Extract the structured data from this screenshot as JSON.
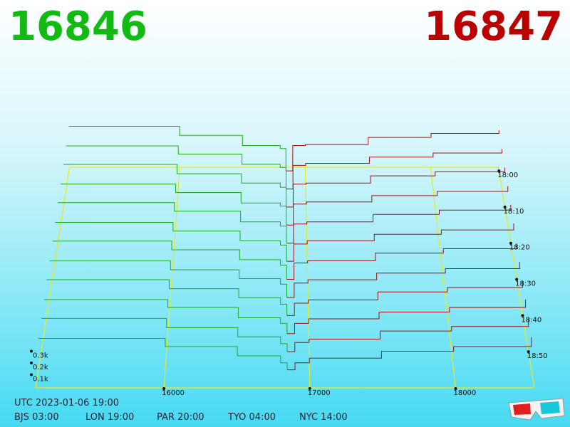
{
  "best_bid": "16846",
  "best_ask": "16847",
  "clock": {
    "utc": "UTC 2023-01-06 19:00",
    "zones": [
      "BJS 03:00",
      "LON 19:00",
      "PAR 20:00",
      "TYO 04:00",
      "NYC 14:00"
    ]
  },
  "chart_data": {
    "type": "depth3d",
    "xlim": [
      15120,
      18540
    ],
    "xticks": [
      16000,
      17000,
      18000
    ],
    "ylim": [
      0,
      0.5
    ],
    "yticks": [
      {
        "value": 0.1,
        "label": "0.1k"
      },
      {
        "value": 0.2,
        "label": "0.2k"
      },
      {
        "value": 0.3,
        "label": "0.3k"
      }
    ],
    "zlim": [
      -1,
      60
    ],
    "zticks": [
      {
        "value": 0,
        "label": "18:00"
      },
      {
        "value": 10,
        "label": "18:10"
      },
      {
        "value": 20,
        "label": "18:20"
      },
      {
        "value": 30,
        "label": "18:30"
      },
      {
        "value": 40,
        "label": "18:40"
      },
      {
        "value": 50,
        "label": "18:50"
      }
    ],
    "bid_prices": [
      15120,
      16000,
      16500,
      16800,
      16846
    ],
    "ask_prices": [
      16847,
      16900,
      17000,
      17500,
      18000,
      18540
    ],
    "bid_color": "#1faa1f",
    "ask_color": "#a31010",
    "floor_color": "#e8e820",
    "slices": [
      {
        "z": 0,
        "bids": [
          0.44,
          0.35,
          0.25,
          0.22,
          0
        ],
        "asks": [
          0,
          0.25,
          0.26,
          0.33,
          0.37,
          0.4
        ]
      },
      {
        "z": 5,
        "bids": [
          0.42,
          0.34,
          0.24,
          0.21,
          0
        ],
        "asks": [
          0,
          0.23,
          0.25,
          0.31,
          0.35,
          0.39
        ]
      },
      {
        "z": 10,
        "bids": [
          0.41,
          0.32,
          0.23,
          0.19,
          0
        ],
        "asks": [
          0,
          0.22,
          0.23,
          0.3,
          0.34,
          0.38
        ]
      },
      {
        "z": 15,
        "bids": [
          0.39,
          0.31,
          0.21,
          0.18,
          0
        ],
        "asks": [
          0,
          0.2,
          0.22,
          0.28,
          0.32,
          0.37
        ]
      },
      {
        "z": 20,
        "bids": [
          0.38,
          0.3,
          0.2,
          0.16,
          0
        ],
        "asks": [
          0,
          0.18,
          0.2,
          0.27,
          0.31,
          0.36
        ]
      },
      {
        "z": 25,
        "bids": [
          0.36,
          0.28,
          0.19,
          0.15,
          0
        ],
        "asks": [
          0,
          0.16,
          0.19,
          0.25,
          0.29,
          0.35
        ]
      },
      {
        "z": 30,
        "bids": [
          0.35,
          0.27,
          0.18,
          0.13,
          0
        ],
        "asks": [
          0,
          0.15,
          0.17,
          0.24,
          0.28,
          0.33
        ]
      },
      {
        "z": 35,
        "bids": [
          0.33,
          0.25,
          0.17,
          0.12,
          0
        ],
        "asks": [
          0,
          0.13,
          0.16,
          0.22,
          0.26,
          0.32
        ]
      },
      {
        "z": 40,
        "bids": [
          0.32,
          0.24,
          0.16,
          0.1,
          0
        ],
        "asks": [
          0,
          0.11,
          0.14,
          0.21,
          0.25,
          0.31
        ]
      },
      {
        "z": 45,
        "bids": [
          0.3,
          0.23,
          0.14,
          0.09,
          0
        ],
        "asks": [
          0,
          0.09,
          0.13,
          0.19,
          0.23,
          0.3
        ]
      },
      {
        "z": 50,
        "bids": [
          0.29,
          0.21,
          0.13,
          0.07,
          0
        ],
        "asks": [
          0,
          0.08,
          0.11,
          0.18,
          0.22,
          0.29
        ]
      },
      {
        "z": 55,
        "bids": [
          0.27,
          0.2,
          0.12,
          0.06,
          0
        ],
        "asks": [
          0,
          0.06,
          0.1,
          0.16,
          0.2,
          0.28
        ]
      }
    ]
  }
}
